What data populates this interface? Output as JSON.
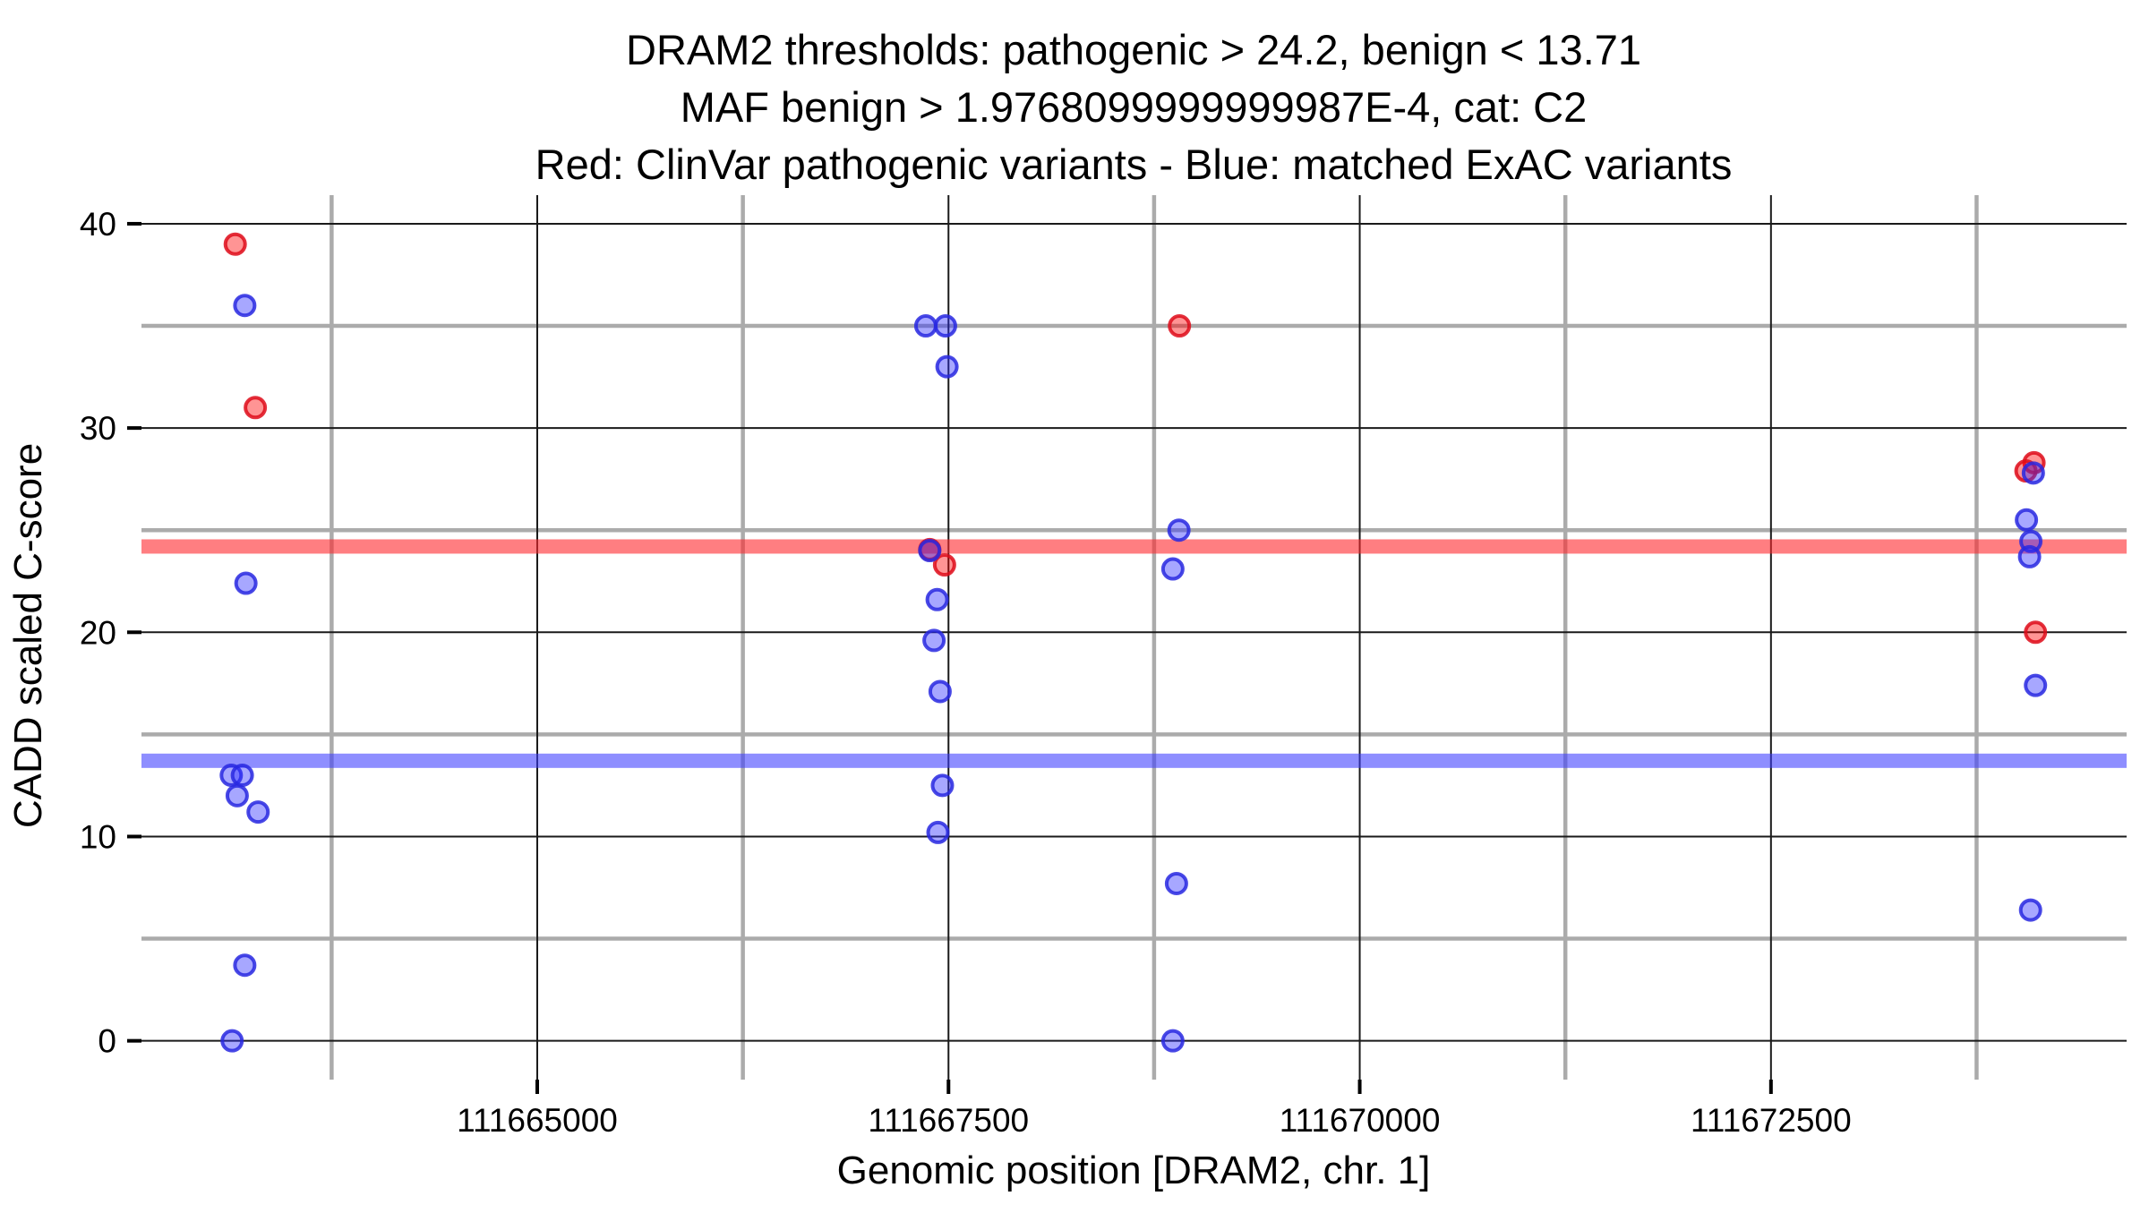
{
  "title": {
    "line1": "DRAM2 thresholds: pathogenic > 24.2, benign < 13.71",
    "line2": "MAF benign > 1.9768099999999987E-4, cat: C2",
    "line3": "Red: ClinVar pathogenic variants - Blue: matched ExAC variants"
  },
  "x_axis": {
    "label": "Genomic position [DRAM2, chr. 1]",
    "tick_labels": [
      "111665000",
      "111667500",
      "111670000",
      "111672500"
    ],
    "tick_values": [
      111665000,
      111667500,
      111670000,
      111672500
    ],
    "minor_values": [
      111663750,
      111666250,
      111668750,
      111671250,
      111673750
    ],
    "domain": [
      111662594,
      111674662
    ]
  },
  "y_axis": {
    "label": "CADD scaled C-score",
    "tick_labels": [
      "0",
      "10",
      "20",
      "30",
      "40"
    ],
    "tick_values": [
      0,
      10,
      20,
      30,
      40
    ],
    "minor_values": [
      5,
      15,
      25,
      35
    ],
    "domain": [
      -1.9,
      41.4
    ]
  },
  "thresholds": {
    "pathogenic_value": 24.2,
    "benign_value": 13.71,
    "pathogenic_color": "rgba(255,40,45,0.60)",
    "benign_color": "rgba(60,60,255,0.58)"
  },
  "colors": {
    "major_grid": "#1a1a1a",
    "minor_grid": "#ababab",
    "red_fill": "rgba(255,0,0,0.42)",
    "red_stroke": "rgba(222,10,25,0.85)",
    "blue_fill": "rgba(45,45,255,0.42)",
    "blue_stroke": "rgba(40,40,225,0.85)"
  },
  "chart_data": {
    "type": "scatter",
    "title": "DRAM2 thresholds: pathogenic > 24.2, benign < 13.71 | MAF benign > 1.9768099999999987E-4, cat: C2 | Red: ClinVar pathogenic variants - Blue: matched ExAC variants",
    "xlabel": "Genomic position [DRAM2, chr. 1]",
    "ylabel": "CADD scaled C-score",
    "xlim": [
      111662594,
      111674662
    ],
    "ylim": [
      -1.9,
      41.4
    ],
    "grid": "major-black-minor-gray",
    "legend_position": "none (encoded in title)",
    "threshold_lines": [
      {
        "name": "pathogenic threshold",
        "y": 24.2,
        "color": "red"
      },
      {
        "name": "benign threshold",
        "y": 13.71,
        "color": "blue"
      }
    ],
    "series": [
      {
        "name": "ClinVar pathogenic variants",
        "color": "red",
        "points": [
          [
            111663164,
            39.0
          ],
          [
            111663286,
            31.0
          ],
          [
            111667386,
            24.05
          ],
          [
            111667476,
            23.3
          ],
          [
            111668904,
            35.0
          ],
          [
            111674099,
            28.3
          ],
          [
            111674050,
            27.9
          ],
          [
            111674108,
            20.0
          ]
        ]
      },
      {
        "name": "matched ExAC variants",
        "color": "blue",
        "points": [
          [
            111663222,
            36.0
          ],
          [
            111663229,
            22.4
          ],
          [
            111663140,
            13.0
          ],
          [
            111663207,
            13.0
          ],
          [
            111663176,
            12.0
          ],
          [
            111663303,
            11.2
          ],
          [
            111663222,
            3.7
          ],
          [
            111663145,
            0.0
          ],
          [
            111667362,
            35.0
          ],
          [
            111667482,
            35.0
          ],
          [
            111667491,
            33.0
          ],
          [
            111667386,
            24.0
          ],
          [
            111667431,
            21.6
          ],
          [
            111667412,
            19.6
          ],
          [
            111667449,
            17.1
          ],
          [
            111667463,
            12.5
          ],
          [
            111667436,
            10.2
          ],
          [
            111668901,
            25.0
          ],
          [
            111668864,
            23.1
          ],
          [
            111668886,
            7.7
          ],
          [
            111668864,
            0.0
          ],
          [
            111674095,
            27.8
          ],
          [
            111674053,
            25.5
          ],
          [
            111674080,
            24.45
          ],
          [
            111674072,
            23.7
          ],
          [
            111674108,
            17.4
          ],
          [
            111674078,
            6.4
          ]
        ]
      }
    ]
  }
}
